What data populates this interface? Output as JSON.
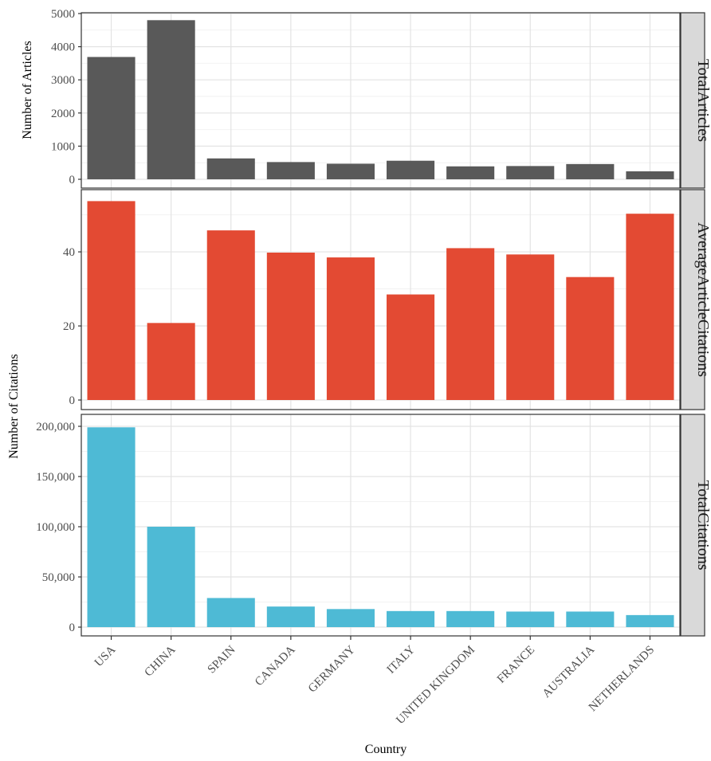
{
  "chart_data": {
    "type": "bar",
    "xlabel": "Country",
    "categories": [
      "USA",
      "CHINA",
      "SPAIN",
      "CANADA",
      "GERMANY",
      "ITALY",
      "UNITED KINGDOM",
      "FRANCE",
      "AUSTRALIA",
      "NETHERLANDS"
    ],
    "panels": [
      {
        "strip": "TotalArticles",
        "ylabel": "Number of Articles",
        "color": "#595959",
        "ylim": [
          0,
          5000
        ],
        "yticks": [
          0,
          1000,
          2000,
          3000,
          4000,
          5000
        ],
        "ytick_labels": [
          "0",
          "1000",
          "2000",
          "3000",
          "4000",
          "5000"
        ],
        "values": [
          3690,
          4800,
          630,
          520,
          470,
          560,
          390,
          400,
          460,
          240
        ]
      },
      {
        "strip": "AverageArticleCitations",
        "ylabel": "Number of Citations",
        "color": "#E34A33",
        "ylim": [
          0,
          54
        ],
        "yticks": [
          0,
          20,
          40
        ],
        "ytick_labels": [
          "0",
          "20",
          "40"
        ],
        "values": [
          53.7,
          20.8,
          45.8,
          39.8,
          38.5,
          28.5,
          41.0,
          39.3,
          33.2,
          50.3
        ]
      },
      {
        "strip": "TotalCitations",
        "color": "#4EBAD5",
        "ylim": [
          0,
          200000
        ],
        "yticks": [
          0,
          50000,
          100000,
          150000,
          200000
        ],
        "ytick_labels": [
          "0",
          "50,000",
          "100,000",
          "150,000",
          "200,000"
        ],
        "values": [
          199000,
          100000,
          29000,
          20500,
          18000,
          16000,
          16000,
          15500,
          15500,
          12000
        ]
      }
    ]
  }
}
